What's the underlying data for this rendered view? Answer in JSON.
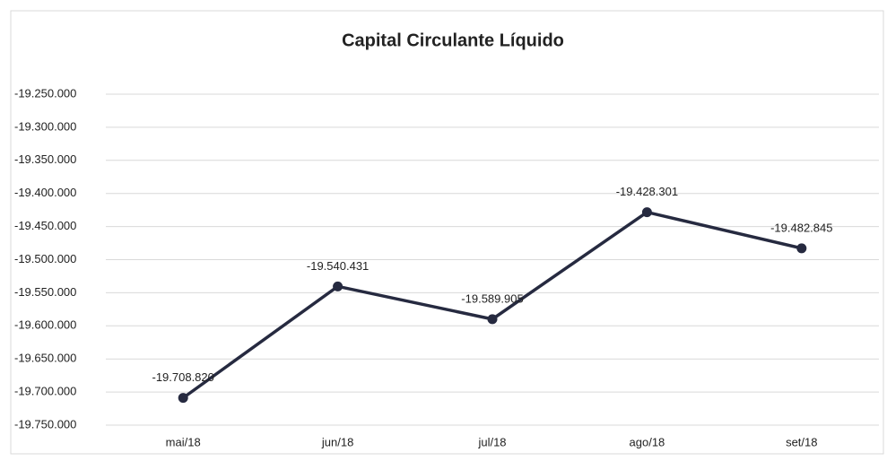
{
  "chart_data": {
    "type": "line",
    "title": "Capital Circulante Líquido",
    "categories": [
      "mai/18",
      "jun/18",
      "jul/18",
      "ago/18",
      "set/18"
    ],
    "series": [
      {
        "color": "#262a40",
        "values": [
          -19708820,
          -19540431,
          -19589905,
          -19428301,
          -19482845
        ],
        "value_labels": [
          "-19.708.820",
          "-19.540.431",
          "-19.589.905",
          "-19.428.301",
          "-19.482.845"
        ]
      }
    ],
    "ylim": [
      -19750000,
      -19250000
    ],
    "yticks": [
      {
        "value": -19250000,
        "label": "-19.250.000"
      },
      {
        "value": -19300000,
        "label": "-19.300.000"
      },
      {
        "value": -19350000,
        "label": "-19.350.000"
      },
      {
        "value": -19400000,
        "label": "-19.400.000"
      },
      {
        "value": -19450000,
        "label": "-19.450.000"
      },
      {
        "value": -19500000,
        "label": "-19.500.000"
      },
      {
        "value": -19550000,
        "label": "-19.550.000"
      },
      {
        "value": -19600000,
        "label": "-19.600.000"
      },
      {
        "value": -19650000,
        "label": "-19.650.000"
      },
      {
        "value": -19700000,
        "label": "-19.700.000"
      },
      {
        "value": -19750000,
        "label": "-19.750.000"
      }
    ],
    "grid": true
  }
}
